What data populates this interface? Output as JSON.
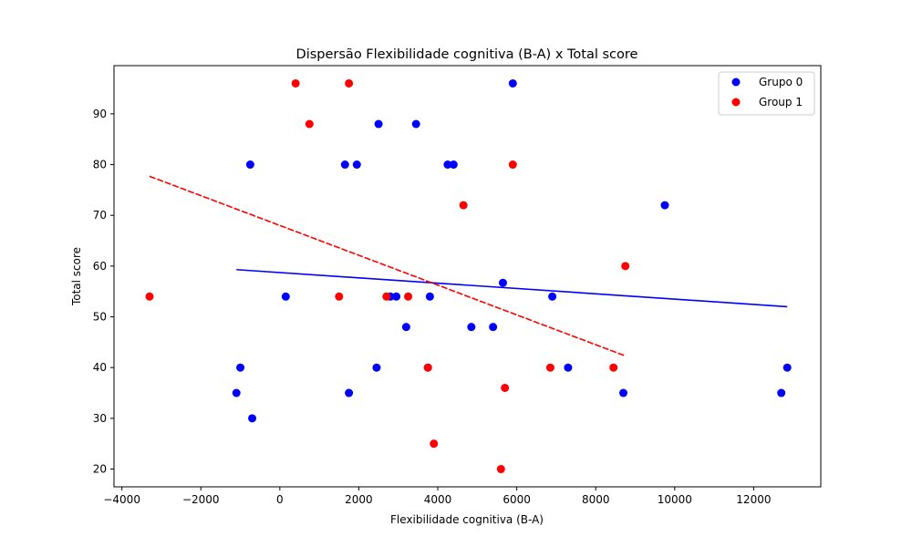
{
  "chart_data": {
    "type": "scatter",
    "title": "Dispersão Flexibilidade cognitiva (B-A) x Total score",
    "xlabel": "Flexibilidade cognitiva (B-A)",
    "ylabel": "Total score",
    "xlim": [
      -4200,
      13700
    ],
    "ylim": [
      16.5,
      99.5
    ],
    "xticks": [
      -4000,
      -2000,
      0,
      2000,
      4000,
      6000,
      8000,
      10000,
      12000
    ],
    "yticks": [
      20,
      30,
      40,
      50,
      60,
      70,
      80,
      90
    ],
    "grid": false,
    "legend_position": "top-right",
    "series": [
      {
        "name": "Grupo 0",
        "color": "#0000ff",
        "points": [
          [
            5900,
            96
          ],
          [
            2500,
            88
          ],
          [
            3450,
            88
          ],
          [
            -750,
            80
          ],
          [
            1650,
            80
          ],
          [
            1950,
            80
          ],
          [
            4250,
            80
          ],
          [
            4400,
            80
          ],
          [
            9750,
            72
          ],
          [
            5650,
            56.7
          ],
          [
            150,
            54
          ],
          [
            2800,
            54
          ],
          [
            2950,
            54
          ],
          [
            3800,
            54
          ],
          [
            6900,
            54
          ],
          [
            3200,
            48
          ],
          [
            4850,
            48
          ],
          [
            5400,
            48
          ],
          [
            -1000,
            40
          ],
          [
            2450,
            40
          ],
          [
            3750,
            40
          ],
          [
            7300,
            40
          ],
          [
            12850,
            40
          ],
          [
            -1100,
            35
          ],
          [
            1750,
            35
          ],
          [
            8700,
            35
          ],
          [
            12700,
            35
          ],
          [
            -700,
            30
          ]
        ],
        "fit_line": {
          "x": [
            -1100,
            12850
          ],
          "y": [
            59.3,
            52.0
          ]
        }
      },
      {
        "name": "Group 1",
        "color": "#ff0000",
        "points": [
          [
            400,
            96
          ],
          [
            1750,
            96
          ],
          [
            750,
            88
          ],
          [
            5900,
            80
          ],
          [
            4650,
            72
          ],
          [
            8750,
            60
          ],
          [
            -3300,
            54
          ],
          [
            1500,
            54
          ],
          [
            2700,
            54
          ],
          [
            3250,
            54
          ],
          [
            3750,
            40
          ],
          [
            6850,
            40
          ],
          [
            8450,
            40
          ],
          [
            5700,
            36
          ],
          [
            3900,
            25
          ],
          [
            5600,
            20
          ]
        ],
        "fit_line": {
          "x": [
            -3300,
            8750
          ],
          "y": [
            77.7,
            42.3
          ]
        }
      }
    ]
  }
}
